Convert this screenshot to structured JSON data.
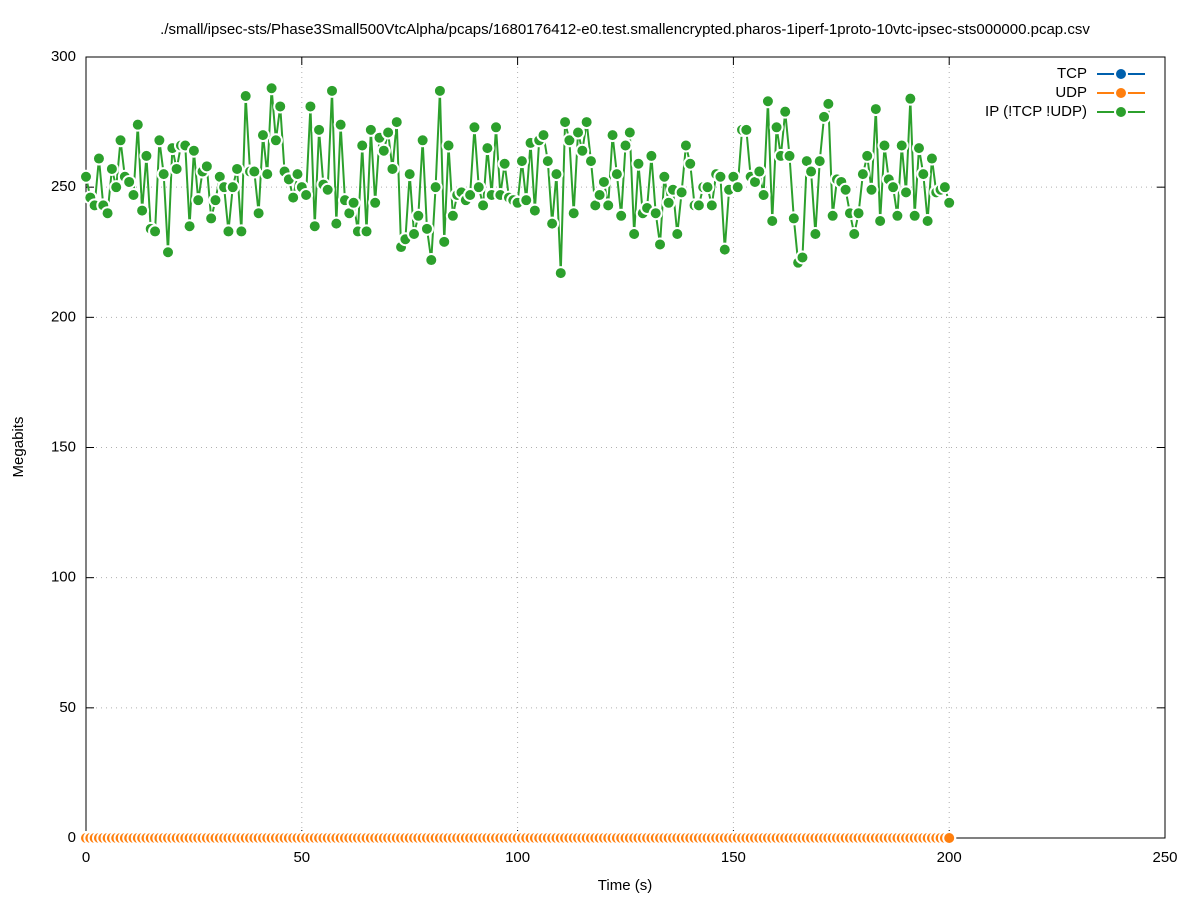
{
  "chart_data": {
    "type": "line",
    "title": "./small/ipsec-sts/Phase3Small500VtcAlpha/pcaps/1680176412-e0.test.smallencrypted.pharos-1iperf-1proto-10vtc-ipsec-sts000000.pcap.csv",
    "xlabel": "Time (s)",
    "ylabel": "Megabits",
    "x": [
      0,
      1,
      2,
      3,
      4,
      5,
      6,
      7,
      8,
      9,
      10,
      11,
      12,
      13,
      14,
      15,
      16,
      17,
      18,
      19,
      20,
      21,
      22,
      23,
      24,
      25,
      26,
      27,
      28,
      29,
      30,
      31,
      32,
      33,
      34,
      35,
      36,
      37,
      38,
      39,
      40,
      41,
      42,
      43,
      44,
      45,
      46,
      47,
      48,
      49,
      50,
      51,
      52,
      53,
      54,
      55,
      56,
      57,
      58,
      59,
      60,
      61,
      62,
      63,
      64,
      65,
      66,
      67,
      68,
      69,
      70,
      71,
      72,
      73,
      74,
      75,
      76,
      77,
      78,
      79,
      80,
      81,
      82,
      83,
      84,
      85,
      86,
      87,
      88,
      89,
      90,
      91,
      92,
      93,
      94,
      95,
      96,
      97,
      98,
      99,
      100,
      101,
      102,
      103,
      104,
      105,
      106,
      107,
      108,
      109,
      110,
      111,
      112,
      113,
      114,
      115,
      116,
      117,
      118,
      119,
      120,
      121,
      122,
      123,
      124,
      125,
      126,
      127,
      128,
      129,
      130,
      131,
      132,
      133,
      134,
      135,
      136,
      137,
      138,
      139,
      140,
      141,
      142,
      143,
      144,
      145,
      146,
      147,
      148,
      149,
      150,
      151,
      152,
      153,
      154,
      155,
      156,
      157,
      158,
      159,
      160,
      161,
      162,
      163,
      164,
      165,
      166,
      167,
      168,
      169,
      170,
      171,
      172,
      173,
      174,
      175,
      176,
      177,
      178,
      179,
      180,
      181,
      182,
      183,
      184,
      185,
      186,
      187,
      188,
      189,
      190,
      191,
      192,
      193,
      194,
      195,
      196,
      197,
      198,
      199,
      200
    ],
    "series": [
      {
        "name": "TCP",
        "color": "#0060ad",
        "values": [
          0,
          0,
          0,
          0,
          0,
          0,
          0,
          0,
          0,
          0,
          0,
          0,
          0,
          0,
          0,
          0,
          0,
          0,
          0,
          0,
          0,
          0,
          0,
          0,
          0,
          0,
          0,
          0,
          0,
          0,
          0,
          0,
          0,
          0,
          0,
          0,
          0,
          0,
          0,
          0,
          0,
          0,
          0,
          0,
          0,
          0,
          0,
          0,
          0,
          0,
          0,
          0,
          0,
          0,
          0,
          0,
          0,
          0,
          0,
          0,
          0,
          0,
          0,
          0,
          0,
          0,
          0,
          0,
          0,
          0,
          0,
          0,
          0,
          0,
          0,
          0,
          0,
          0,
          0,
          0,
          0,
          0,
          0,
          0,
          0,
          0,
          0,
          0,
          0,
          0,
          0,
          0,
          0,
          0,
          0,
          0,
          0,
          0,
          0,
          0,
          0,
          0,
          0,
          0,
          0,
          0,
          0,
          0,
          0,
          0,
          0,
          0,
          0,
          0,
          0,
          0,
          0,
          0,
          0,
          0,
          0,
          0,
          0,
          0,
          0,
          0,
          0,
          0,
          0,
          0,
          0,
          0,
          0,
          0,
          0,
          0,
          0,
          0,
          0,
          0,
          0,
          0,
          0,
          0,
          0,
          0,
          0,
          0,
          0,
          0,
          0,
          0,
          0,
          0,
          0,
          0,
          0,
          0,
          0,
          0,
          0,
          0,
          0,
          0,
          0,
          0,
          0,
          0,
          0,
          0,
          0,
          0,
          0,
          0,
          0,
          0,
          0,
          0,
          0,
          0,
          0,
          0,
          0,
          0,
          0,
          0,
          0,
          0,
          0,
          0,
          0,
          0,
          0,
          0,
          0,
          0,
          0,
          0,
          0,
          0,
          0
        ]
      },
      {
        "name": "UDP",
        "color": "#ff7f0e",
        "values": [
          0,
          0,
          0,
          0,
          0,
          0,
          0,
          0,
          0,
          0,
          0,
          0,
          0,
          0,
          0,
          0,
          0,
          0,
          0,
          0,
          0,
          0,
          0,
          0,
          0,
          0,
          0,
          0,
          0,
          0,
          0,
          0,
          0,
          0,
          0,
          0,
          0,
          0,
          0,
          0,
          0,
          0,
          0,
          0,
          0,
          0,
          0,
          0,
          0,
          0,
          0,
          0,
          0,
          0,
          0,
          0,
          0,
          0,
          0,
          0,
          0,
          0,
          0,
          0,
          0,
          0,
          0,
          0,
          0,
          0,
          0,
          0,
          0,
          0,
          0,
          0,
          0,
          0,
          0,
          0,
          0,
          0,
          0,
          0,
          0,
          0,
          0,
          0,
          0,
          0,
          0,
          0,
          0,
          0,
          0,
          0,
          0,
          0,
          0,
          0,
          0,
          0,
          0,
          0,
          0,
          0,
          0,
          0,
          0,
          0,
          0,
          0,
          0,
          0,
          0,
          0,
          0,
          0,
          0,
          0,
          0,
          0,
          0,
          0,
          0,
          0,
          0,
          0,
          0,
          0,
          0,
          0,
          0,
          0,
          0,
          0,
          0,
          0,
          0,
          0,
          0,
          0,
          0,
          0,
          0,
          0,
          0,
          0,
          0,
          0,
          0,
          0,
          0,
          0,
          0,
          0,
          0,
          0,
          0,
          0,
          0,
          0,
          0,
          0,
          0,
          0,
          0,
          0,
          0,
          0,
          0,
          0,
          0,
          0,
          0,
          0,
          0,
          0,
          0,
          0,
          0,
          0,
          0,
          0,
          0,
          0,
          0,
          0,
          0,
          0,
          0,
          0,
          0,
          0,
          0,
          0,
          0,
          0,
          0,
          0,
          0
        ]
      },
      {
        "name": "IP (!TCP  !UDP)",
        "color": "#2ca02c",
        "values": [
          254,
          246,
          243,
          261,
          243,
          240,
          257,
          250,
          268,
          254,
          252,
          247,
          274,
          241,
          262,
          234,
          233,
          268,
          255,
          225,
          265,
          257,
          266,
          266,
          235,
          264,
          245,
          256,
          258,
          238,
          245,
          254,
          250,
          233,
          250,
          257,
          233,
          285,
          256,
          256,
          240,
          270,
          255,
          288,
          268,
          281,
          256,
          253,
          246,
          255,
          250,
          247,
          281,
          235,
          272,
          251,
          249,
          287,
          236,
          274,
          245,
          240,
          244,
          233,
          266,
          233,
          272,
          244,
          269,
          264,
          271,
          257,
          275,
          227,
          230,
          255,
          232,
          239,
          268,
          234,
          222,
          250,
          287,
          229,
          266,
          239,
          247,
          248,
          245,
          247,
          273,
          250,
          243,
          265,
          247,
          273,
          247,
          259,
          246,
          245,
          244,
          260,
          245,
          267,
          241,
          268,
          270,
          260,
          236,
          255,
          217,
          275,
          268,
          240,
          271,
          264,
          275,
          260,
          243,
          247,
          252,
          243,
          270,
          255,
          239,
          266,
          271,
          232,
          259,
          240,
          242,
          262,
          240,
          228,
          254,
          244,
          249,
          232,
          248,
          266,
          259,
          243,
          243,
          250,
          250,
          243,
          255,
          254,
          226,
          249,
          254,
          250,
          272,
          272,
          254,
          252,
          256,
          247,
          283,
          237,
          273,
          262,
          279,
          262,
          238,
          221,
          223,
          260,
          256,
          232,
          260,
          277,
          282,
          239,
          253,
          252,
          249,
          240,
          232,
          240,
          255,
          262,
          249,
          280,
          237,
          266,
          253,
          250,
          239,
          266,
          248,
          284,
          239,
          265,
          255,
          237,
          261,
          248,
          249,
          250,
          244
        ]
      }
    ],
    "xlim": [
      0,
      250
    ],
    "xticks": [
      0,
      50,
      100,
      150,
      200,
      250
    ],
    "ylim": [
      0,
      300
    ],
    "yticks": [
      0,
      50,
      100,
      150,
      200,
      250,
      300
    ],
    "grid": true,
    "legend": "top-right"
  }
}
